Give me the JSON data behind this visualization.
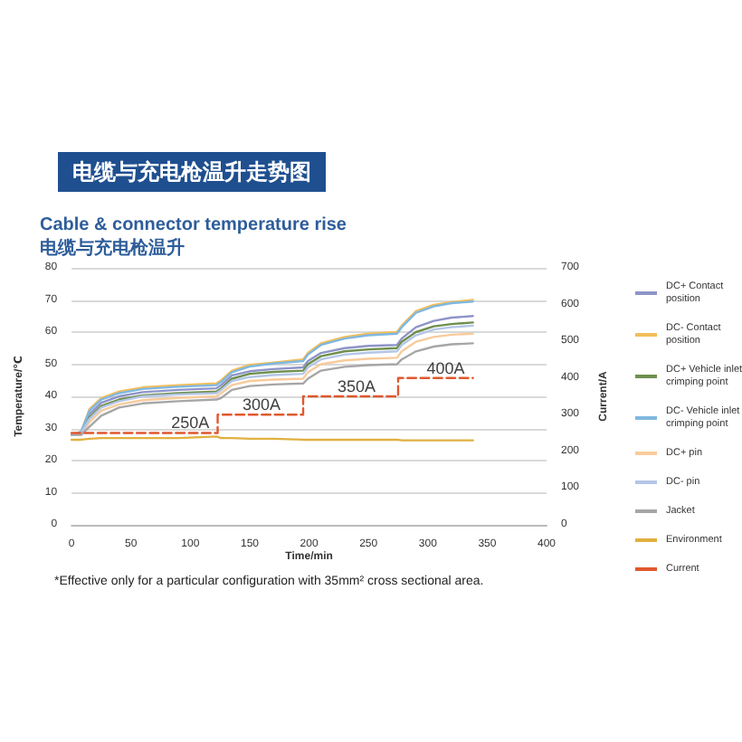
{
  "chart_data": {
    "type": "line",
    "title": "电缆与充电枪温升走势图",
    "subtitle": "Cable & connector temperature rise\n电缆与充电枪温升",
    "xlabel": "Time/min",
    "ylabel": "Temperature/℃",
    "y2label": "Current/A",
    "x": [
      0,
      8,
      15,
      25,
      40,
      60,
      90,
      122,
      126,
      135,
      150,
      170,
      195,
      199,
      210,
      230,
      250,
      274,
      278,
      290,
      305,
      320,
      338
    ],
    "series": [
      {
        "name": "DC+ Contact position",
        "color": "#8e94c8",
        "values": [
          28,
          28.5,
          34.5,
          38,
          40,
          41.3,
          42,
          42.5,
          43.5,
          46.5,
          47.8,
          48.5,
          49,
          51,
          53.5,
          55,
          55.7,
          56,
          58,
          61.5,
          63.5,
          64.5,
          65
        ]
      },
      {
        "name": "DC- Contact position",
        "color": "#f2be5c",
        "values": [
          28,
          29,
          36,
          39.5,
          41.5,
          42.8,
          43.5,
          44,
          45,
          48,
          49.8,
          50.5,
          51.5,
          53.5,
          56.5,
          58.5,
          59.5,
          60,
          62,
          66.5,
          68.5,
          69.3,
          70
        ]
      },
      {
        "name": "DC+ Vehicle inlet crimping point",
        "color": "#6f8f4e",
        "values": [
          28,
          28.5,
          33.5,
          37,
          39,
          40.3,
          41,
          41.5,
          42.5,
          45.5,
          47,
          47.6,
          48,
          50,
          52.5,
          54,
          54.6,
          55,
          57,
          60,
          61.8,
          62.5,
          63
        ]
      },
      {
        "name": "DC- Vehicle inlet crimping point",
        "color": "#7fb8e0",
        "values": [
          28,
          29,
          35.5,
          39,
          41,
          42.3,
          43,
          43.5,
          44.5,
          47.5,
          49.3,
          50.2,
          51,
          53,
          56,
          58,
          59,
          59.5,
          61.5,
          66,
          68,
          69,
          69.5
        ]
      },
      {
        "name": "DC+ pin",
        "color": "#f8cb9c",
        "values": [
          28,
          28,
          32,
          35.5,
          37.5,
          38.8,
          39.5,
          40,
          41,
          43.5,
          44.8,
          45.2,
          45.5,
          47.5,
          50,
          51.2,
          51.7,
          52,
          54,
          57,
          58.5,
          59.2,
          59.5
        ]
      },
      {
        "name": "DC- pin",
        "color": "#b4c6e7",
        "values": [
          28,
          28.5,
          33,
          36.5,
          38.5,
          40,
          40.6,
          41,
          42,
          44.8,
          46,
          46.6,
          47,
          49,
          51.5,
          53,
          53.6,
          54,
          56,
          59,
          60.8,
          61.5,
          62
        ]
      },
      {
        "name": "Jacket",
        "color": "#a6a6a6",
        "values": [
          28,
          28,
          30.5,
          34,
          36.5,
          37.8,
          38.5,
          39,
          39.5,
          42,
          43.2,
          43.7,
          44,
          45.5,
          48,
          49.2,
          49.7,
          50,
          51.5,
          54,
          55.5,
          56.2,
          56.5
        ]
      },
      {
        "name": "Environment",
        "color": "#e0b040",
        "values": [
          26.5,
          26.5,
          26.8,
          27,
          27,
          27,
          27,
          27.5,
          27,
          27,
          26.8,
          26.8,
          26.5,
          26.5,
          26.5,
          26.5,
          26.5,
          26.5,
          26.3,
          26.3,
          26.3,
          26.3,
          26.3
        ]
      },
      {
        "name": "Current",
        "type": "step",
        "axis": "y2",
        "line_style": "dashed",
        "color": "#e0582e",
        "x": [
          0,
          123,
          195,
          275,
          338
        ],
        "values": [
          250,
          300,
          350,
          400,
          400
        ]
      }
    ],
    "xlim": [
      0,
      400
    ],
    "xticks": [
      0,
      50,
      100,
      150,
      200,
      250,
      300,
      350,
      400
    ],
    "ylim": [
      0,
      80
    ],
    "yticks": [
      0,
      10,
      20,
      30,
      40,
      50,
      60,
      70,
      80
    ],
    "y2lim": [
      0,
      700
    ],
    "y2ticks": [
      0,
      100,
      200,
      300,
      400,
      500,
      600,
      700
    ],
    "grid": "y",
    "legend": "right",
    "marker": "none",
    "line_style": "solid",
    "annotations": [
      {
        "text": "250A",
        "x": 100,
        "y": 28.6
      },
      {
        "text": "300A",
        "x": 160,
        "y": 34.3
      },
      {
        "text": "350A",
        "x": 240,
        "y": 40
      },
      {
        "text": "400A",
        "x": 315,
        "y": 45.7
      },
      "*Effective only for a particular configuration with 35mm² cross sectional area."
    ]
  }
}
